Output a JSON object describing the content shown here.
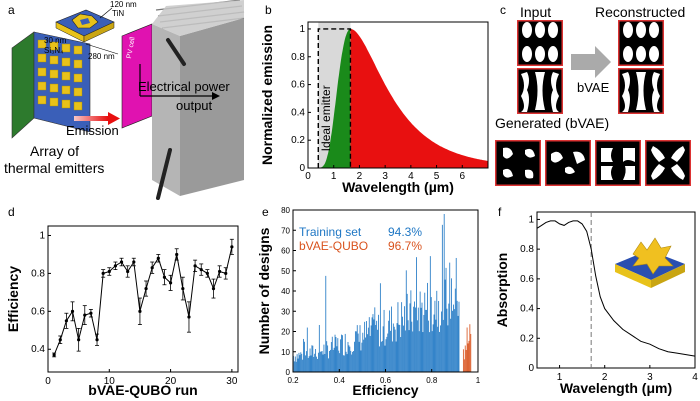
{
  "panels": {
    "a": {
      "letter": "a",
      "tin_label": "TiN",
      "thickness_top": "120 nm",
      "thickness_mid": "30 nm",
      "si3n4_label": "Si₃N₄",
      "width_label": "280 nm",
      "pv_label": "PV cell",
      "emission_label": "Emission",
      "power_label_1": "Electrical power",
      "power_label_2": "output",
      "array_label_1": "Array of",
      "array_label_2": "thermal emitters"
    },
    "b": {
      "letter": "b",
      "ideal_label": "Ideal emitter"
    },
    "c": {
      "letter": "c",
      "input_label": "Input",
      "reconstructed_label": "Reconstructed",
      "arrow_label": "bVAE",
      "generated_label": "Generated (bVAE)"
    },
    "d": {
      "letter": "d"
    },
    "e": {
      "letter": "e"
    },
    "f": {
      "letter": "f"
    }
  },
  "chart_data": [
    {
      "id": "b",
      "type": "area",
      "xlabel": "Wavelength (µm)",
      "ylabel": "Normalized emission",
      "xlim": [
        0,
        7
      ],
      "ylim": [
        0,
        1.05
      ],
      "xticks": [
        0,
        1,
        2,
        3,
        4,
        5,
        6
      ],
      "yticks": [
        0,
        0.2,
        0.4,
        0.6,
        0.8,
        1
      ],
      "ytick_labels": [
        "0",
        "0.2",
        "0.4",
        "0.6",
        "0.8",
        "1"
      ],
      "cutoff": 1.65,
      "colors": {
        "below": "#1a8a1a",
        "above": "#e81010",
        "ideal_band": "#d9d9d9"
      }
    },
    {
      "id": "d",
      "type": "line",
      "xlabel": "bVAE-QUBO run",
      "ylabel": "Efficiency",
      "xlim": [
        0,
        31
      ],
      "ylim": [
        0.28,
        1.05
      ],
      "xticks": [
        0,
        10,
        20,
        30
      ],
      "yticks": [
        0.4,
        0.6,
        0.8,
        1
      ],
      "ytick_labels": [
        "0.4",
        "0.6",
        "0.8",
        "1"
      ],
      "x": [
        1,
        2,
        3,
        4,
        5,
        6,
        7,
        8,
        9,
        10,
        11,
        12,
        13,
        14,
        15,
        16,
        17,
        18,
        19,
        20,
        21,
        22,
        23,
        24,
        25,
        26,
        27,
        28,
        29,
        30
      ],
      "y": [
        0.37,
        0.45,
        0.55,
        0.6,
        0.45,
        0.58,
        0.59,
        0.45,
        0.8,
        0.81,
        0.84,
        0.86,
        0.81,
        0.86,
        0.6,
        0.72,
        0.83,
        0.88,
        0.78,
        0.75,
        0.9,
        0.72,
        0.57,
        0.84,
        0.82,
        0.8,
        0.72,
        0.81,
        0.8,
        0.94
      ],
      "err": [
        0.01,
        0.02,
        0.04,
        0.05,
        0.06,
        0.05,
        0.02,
        0.03,
        0.02,
        0.02,
        0.02,
        0.02,
        0.03,
        0.02,
        0.07,
        0.04,
        0.03,
        0.02,
        0.04,
        0.04,
        0.03,
        0.06,
        0.08,
        0.03,
        0.03,
        0.02,
        0.05,
        0.03,
        0.03,
        0.04
      ]
    },
    {
      "id": "e",
      "type": "bar",
      "xlabel": "Efficiency",
      "ylabel": "Number of designs",
      "xlim": [
        0.2,
        1.0
      ],
      "ylim": [
        0,
        80
      ],
      "xticks": [
        0.2,
        0.4,
        0.6,
        0.8,
        1
      ],
      "xtick_labels": [
        "0.2",
        "0.4",
        "0.6",
        "0.8",
        "1"
      ],
      "yticks": [
        0,
        10,
        20,
        30,
        40,
        50,
        60,
        70,
        80
      ],
      "series": [
        {
          "name": "Training set",
          "label": "94.3%",
          "color": "#1f77c4"
        },
        {
          "name": "bVAE-QUBO",
          "label": "96.7%",
          "color": "#d9531e"
        }
      ]
    },
    {
      "id": "f",
      "type": "line",
      "xlabel": "Wavelength (μm)",
      "ylabel": "Absorption",
      "xlim": [
        0.5,
        4
      ],
      "ylim": [
        0,
        1.05
      ],
      "xticks": [
        1,
        2,
        3,
        4
      ],
      "yticks": [
        0,
        0.2,
        0.4,
        0.6,
        0.8,
        1
      ],
      "ytick_labels": [
        "0",
        "0.2",
        "0.4",
        "0.6",
        "0.8",
        "1"
      ],
      "cutoff": 1.7,
      "x": [
        0.5,
        0.6,
        0.7,
        0.8,
        0.9,
        1.0,
        1.1,
        1.2,
        1.3,
        1.4,
        1.5,
        1.6,
        1.7,
        1.8,
        1.9,
        2.0,
        2.2,
        2.4,
        2.6,
        2.8,
        3.0,
        3.2,
        3.4,
        3.6,
        3.8,
        4.0
      ],
      "y": [
        0.94,
        0.96,
        0.98,
        0.99,
        0.99,
        0.97,
        0.96,
        0.98,
        0.99,
        0.99,
        0.97,
        0.92,
        0.8,
        0.62,
        0.48,
        0.4,
        0.32,
        0.26,
        0.22,
        0.18,
        0.16,
        0.13,
        0.11,
        0.1,
        0.09,
        0.08
      ]
    }
  ]
}
